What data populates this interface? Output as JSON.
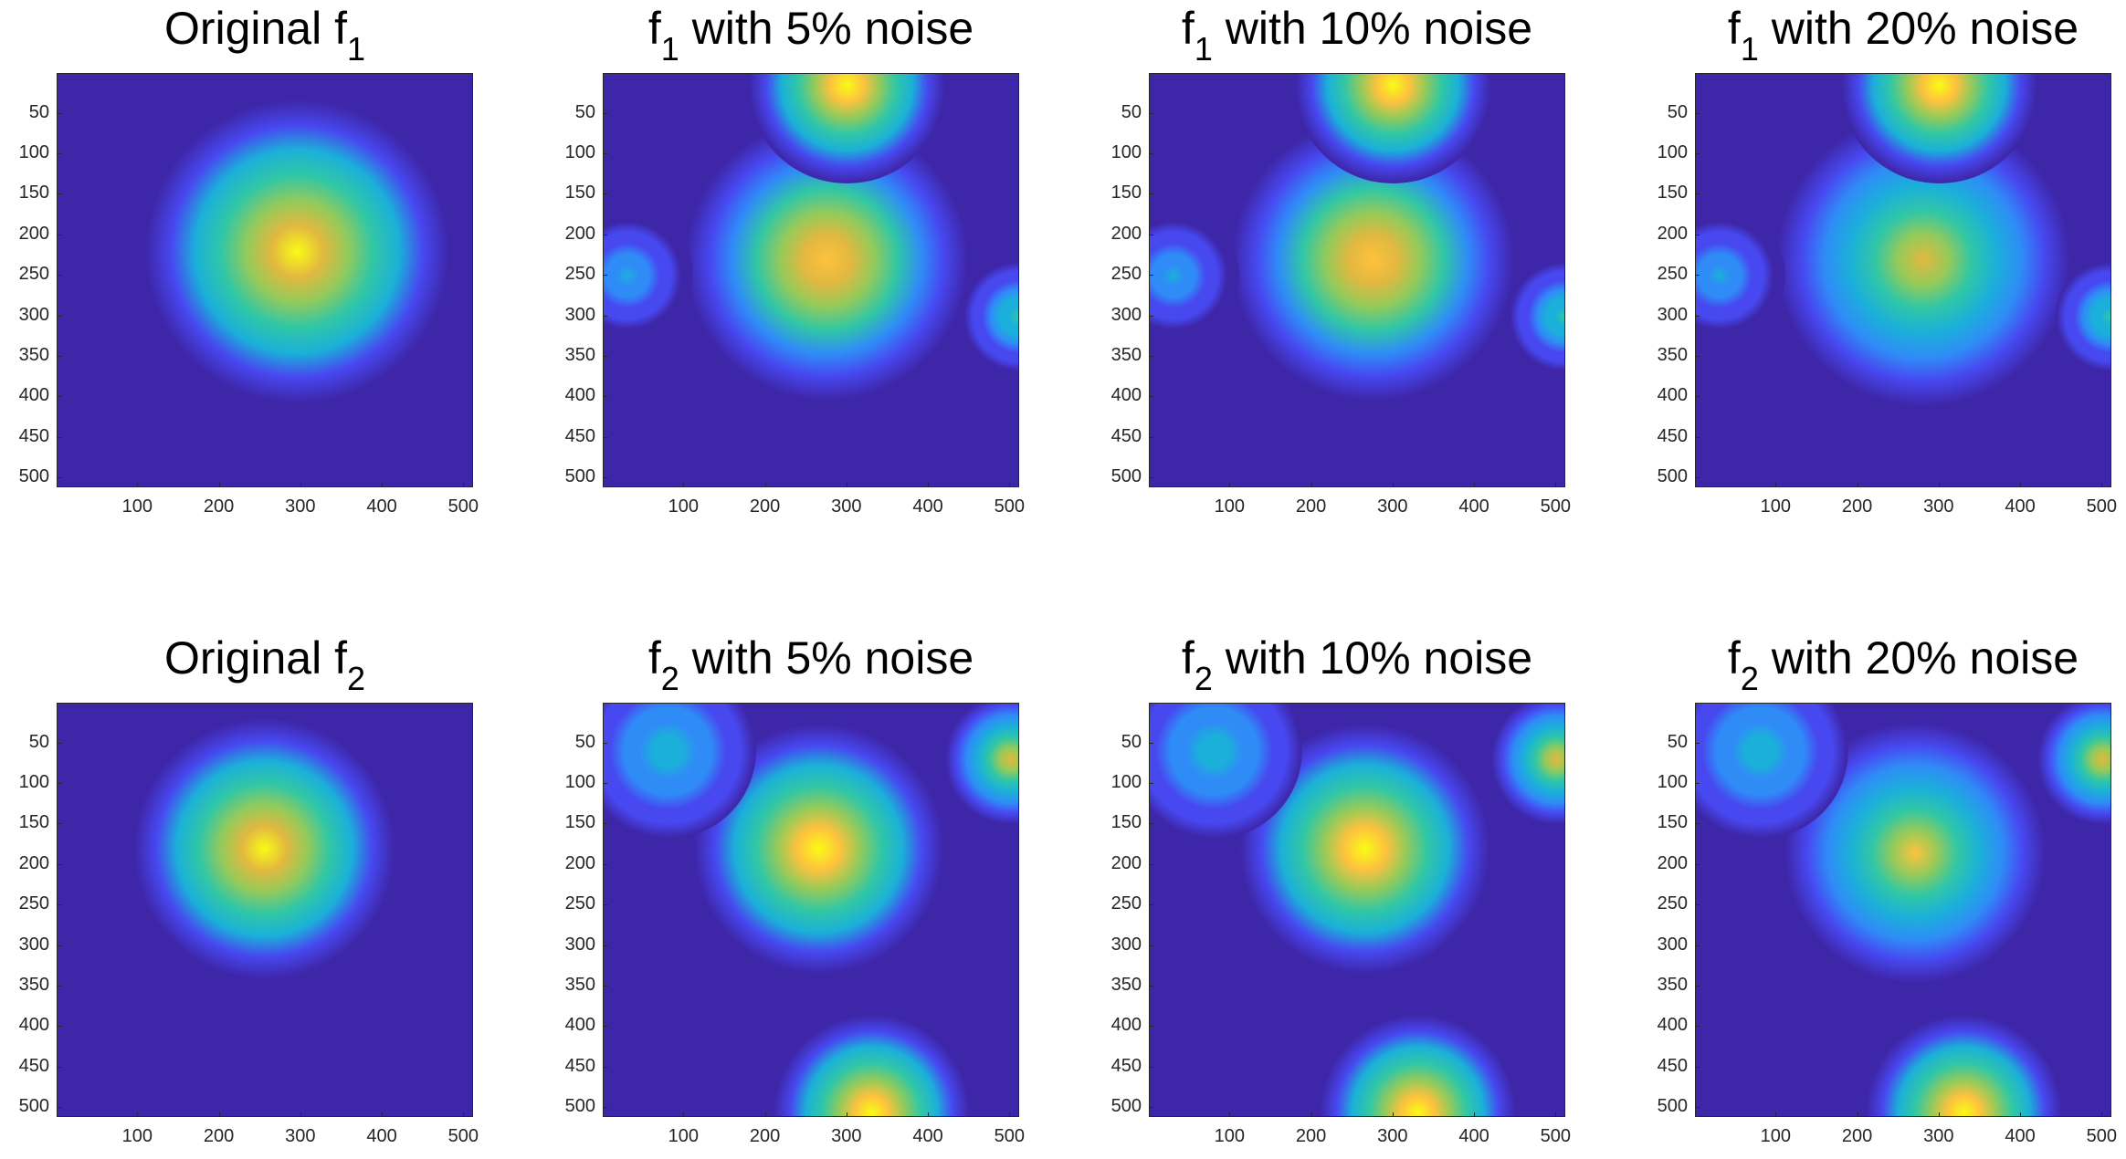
{
  "colormap": [
    "#3e26a8",
    "#4748f0",
    "#2f8cf7",
    "#1bb0d9",
    "#31c7a5",
    "#96ca59",
    "#e2b840",
    "#fdc23e",
    "#f9fb15"
  ],
  "colors": {
    "background": "#3e26a8",
    "peak": "#f9fb15"
  },
  "chart_data": [
    {
      "type": "heatmap",
      "id": "f1",
      "title_main": "Original f",
      "title_sub": "1",
      "title_rest": "",
      "xticks": [
        100,
        200,
        300,
        400,
        500
      ],
      "yticks": [
        50,
        100,
        150,
        200,
        250,
        300,
        350,
        400,
        450,
        500
      ],
      "xlim": [
        1,
        512
      ],
      "ylim": [
        1,
        512
      ],
      "noise_pct": 0,
      "blobs": [
        {
          "cx": 295,
          "cy": 220,
          "r": 140,
          "peak": 0.95
        }
      ]
    },
    {
      "type": "heatmap",
      "id": "f1-5",
      "title_main": "f",
      "title_sub": "1",
      "title_rest": " with 5% noise",
      "xticks": [
        100,
        200,
        300,
        400,
        500
      ],
      "yticks": [
        50,
        100,
        150,
        200,
        250,
        300,
        350,
        400,
        450,
        500
      ],
      "xlim": [
        1,
        512
      ],
      "ylim": [
        1,
        512
      ],
      "noise_pct": 5,
      "blobs": [
        {
          "cx": 275,
          "cy": 230,
          "r": 130,
          "peak": 0.92
        },
        {
          "cx": 300,
          "cy": 15,
          "r": 90,
          "peak": 1.0
        },
        {
          "cx": 30,
          "cy": 250,
          "r": 60,
          "peak": 0.35
        },
        {
          "cx": 510,
          "cy": 300,
          "r": 50,
          "peak": 0.5
        }
      ]
    },
    {
      "type": "heatmap",
      "id": "f1-10",
      "title_main": "f",
      "title_sub": "1",
      "title_rest": " with 10% noise",
      "xticks": [
        100,
        200,
        300,
        400,
        500
      ],
      "yticks": [
        50,
        100,
        150,
        200,
        250,
        300,
        350,
        400,
        450,
        500
      ],
      "xlim": [
        1,
        512
      ],
      "ylim": [
        1,
        512
      ],
      "noise_pct": 10,
      "blobs": [
        {
          "cx": 275,
          "cy": 230,
          "r": 130,
          "peak": 0.88
        },
        {
          "cx": 300,
          "cy": 15,
          "r": 90,
          "peak": 1.0
        },
        {
          "cx": 30,
          "cy": 250,
          "r": 60,
          "peak": 0.35
        },
        {
          "cx": 510,
          "cy": 300,
          "r": 50,
          "peak": 0.5
        }
      ]
    },
    {
      "type": "heatmap",
      "id": "f1-20",
      "title_main": "f",
      "title_sub": "1",
      "title_rest": " with 20% noise",
      "xticks": [
        100,
        200,
        300,
        400,
        500
      ],
      "yticks": [
        50,
        100,
        150,
        200,
        250,
        300,
        350,
        400,
        450,
        500
      ],
      "xlim": [
        1,
        512
      ],
      "ylim": [
        1,
        512
      ],
      "noise_pct": 20,
      "blobs": [
        {
          "cx": 280,
          "cy": 230,
          "r": 135,
          "peak": 0.78
        },
        {
          "cx": 300,
          "cy": 15,
          "r": 90,
          "peak": 1.0
        },
        {
          "cx": 30,
          "cy": 250,
          "r": 60,
          "peak": 0.35
        },
        {
          "cx": 510,
          "cy": 300,
          "r": 50,
          "peak": 0.5
        }
      ]
    },
    {
      "type": "heatmap",
      "id": "f2",
      "title_main": "Original f",
      "title_sub": "2",
      "title_rest": "",
      "xticks": [
        100,
        200,
        300,
        400,
        500
      ],
      "yticks": [
        50,
        100,
        150,
        200,
        250,
        300,
        350,
        400,
        450,
        500
      ],
      "xlim": [
        1,
        512
      ],
      "ylim": [
        1,
        512
      ],
      "noise_pct": 0,
      "blobs": [
        {
          "cx": 255,
          "cy": 180,
          "r": 120,
          "peak": 0.95
        }
      ]
    },
    {
      "type": "heatmap",
      "id": "f2-5",
      "title_main": "f",
      "title_sub": "2",
      "title_rest": " with 5% noise",
      "xticks": [
        100,
        200,
        300,
        400,
        500
      ],
      "yticks": [
        50,
        100,
        150,
        200,
        250,
        300,
        350,
        400,
        450,
        500
      ],
      "xlim": [
        1,
        512
      ],
      "ylim": [
        1,
        512
      ],
      "noise_pct": 5,
      "blobs": [
        {
          "cx": 265,
          "cy": 180,
          "r": 115,
          "peak": 1.0
        },
        {
          "cx": 330,
          "cy": 505,
          "r": 90,
          "peak": 1.0
        },
        {
          "cx": 500,
          "cy": 70,
          "r": 60,
          "peak": 0.8
        },
        {
          "cx": 80,
          "cy": 60,
          "r": 80,
          "peak": 0.4
        }
      ]
    },
    {
      "type": "heatmap",
      "id": "f2-10",
      "title_main": "f",
      "title_sub": "2",
      "title_rest": " with 10% noise",
      "xticks": [
        100,
        200,
        300,
        400,
        500
      ],
      "yticks": [
        50,
        100,
        150,
        200,
        250,
        300,
        350,
        400,
        450,
        500
      ],
      "xlim": [
        1,
        512
      ],
      "ylim": [
        1,
        512
      ],
      "noise_pct": 10,
      "blobs": [
        {
          "cx": 265,
          "cy": 180,
          "r": 115,
          "peak": 1.0
        },
        {
          "cx": 330,
          "cy": 505,
          "r": 90,
          "peak": 1.0
        },
        {
          "cx": 500,
          "cy": 70,
          "r": 60,
          "peak": 0.8
        },
        {
          "cx": 80,
          "cy": 60,
          "r": 80,
          "peak": 0.4
        }
      ]
    },
    {
      "type": "heatmap",
      "id": "f2-20",
      "title_main": "f",
      "title_sub": "2",
      "title_rest": " with 20% noise",
      "xticks": [
        100,
        200,
        300,
        400,
        500
      ],
      "yticks": [
        50,
        100,
        150,
        200,
        250,
        300,
        350,
        400,
        450,
        500
      ],
      "xlim": [
        1,
        512
      ],
      "ylim": [
        1,
        512
      ],
      "noise_pct": 20,
      "blobs": [
        {
          "cx": 270,
          "cy": 185,
          "r": 120,
          "peak": 0.82
        },
        {
          "cx": 330,
          "cy": 505,
          "r": 90,
          "peak": 1.0
        },
        {
          "cx": 500,
          "cy": 70,
          "r": 60,
          "peak": 0.8
        },
        {
          "cx": 80,
          "cy": 60,
          "r": 80,
          "peak": 0.4
        }
      ]
    }
  ]
}
